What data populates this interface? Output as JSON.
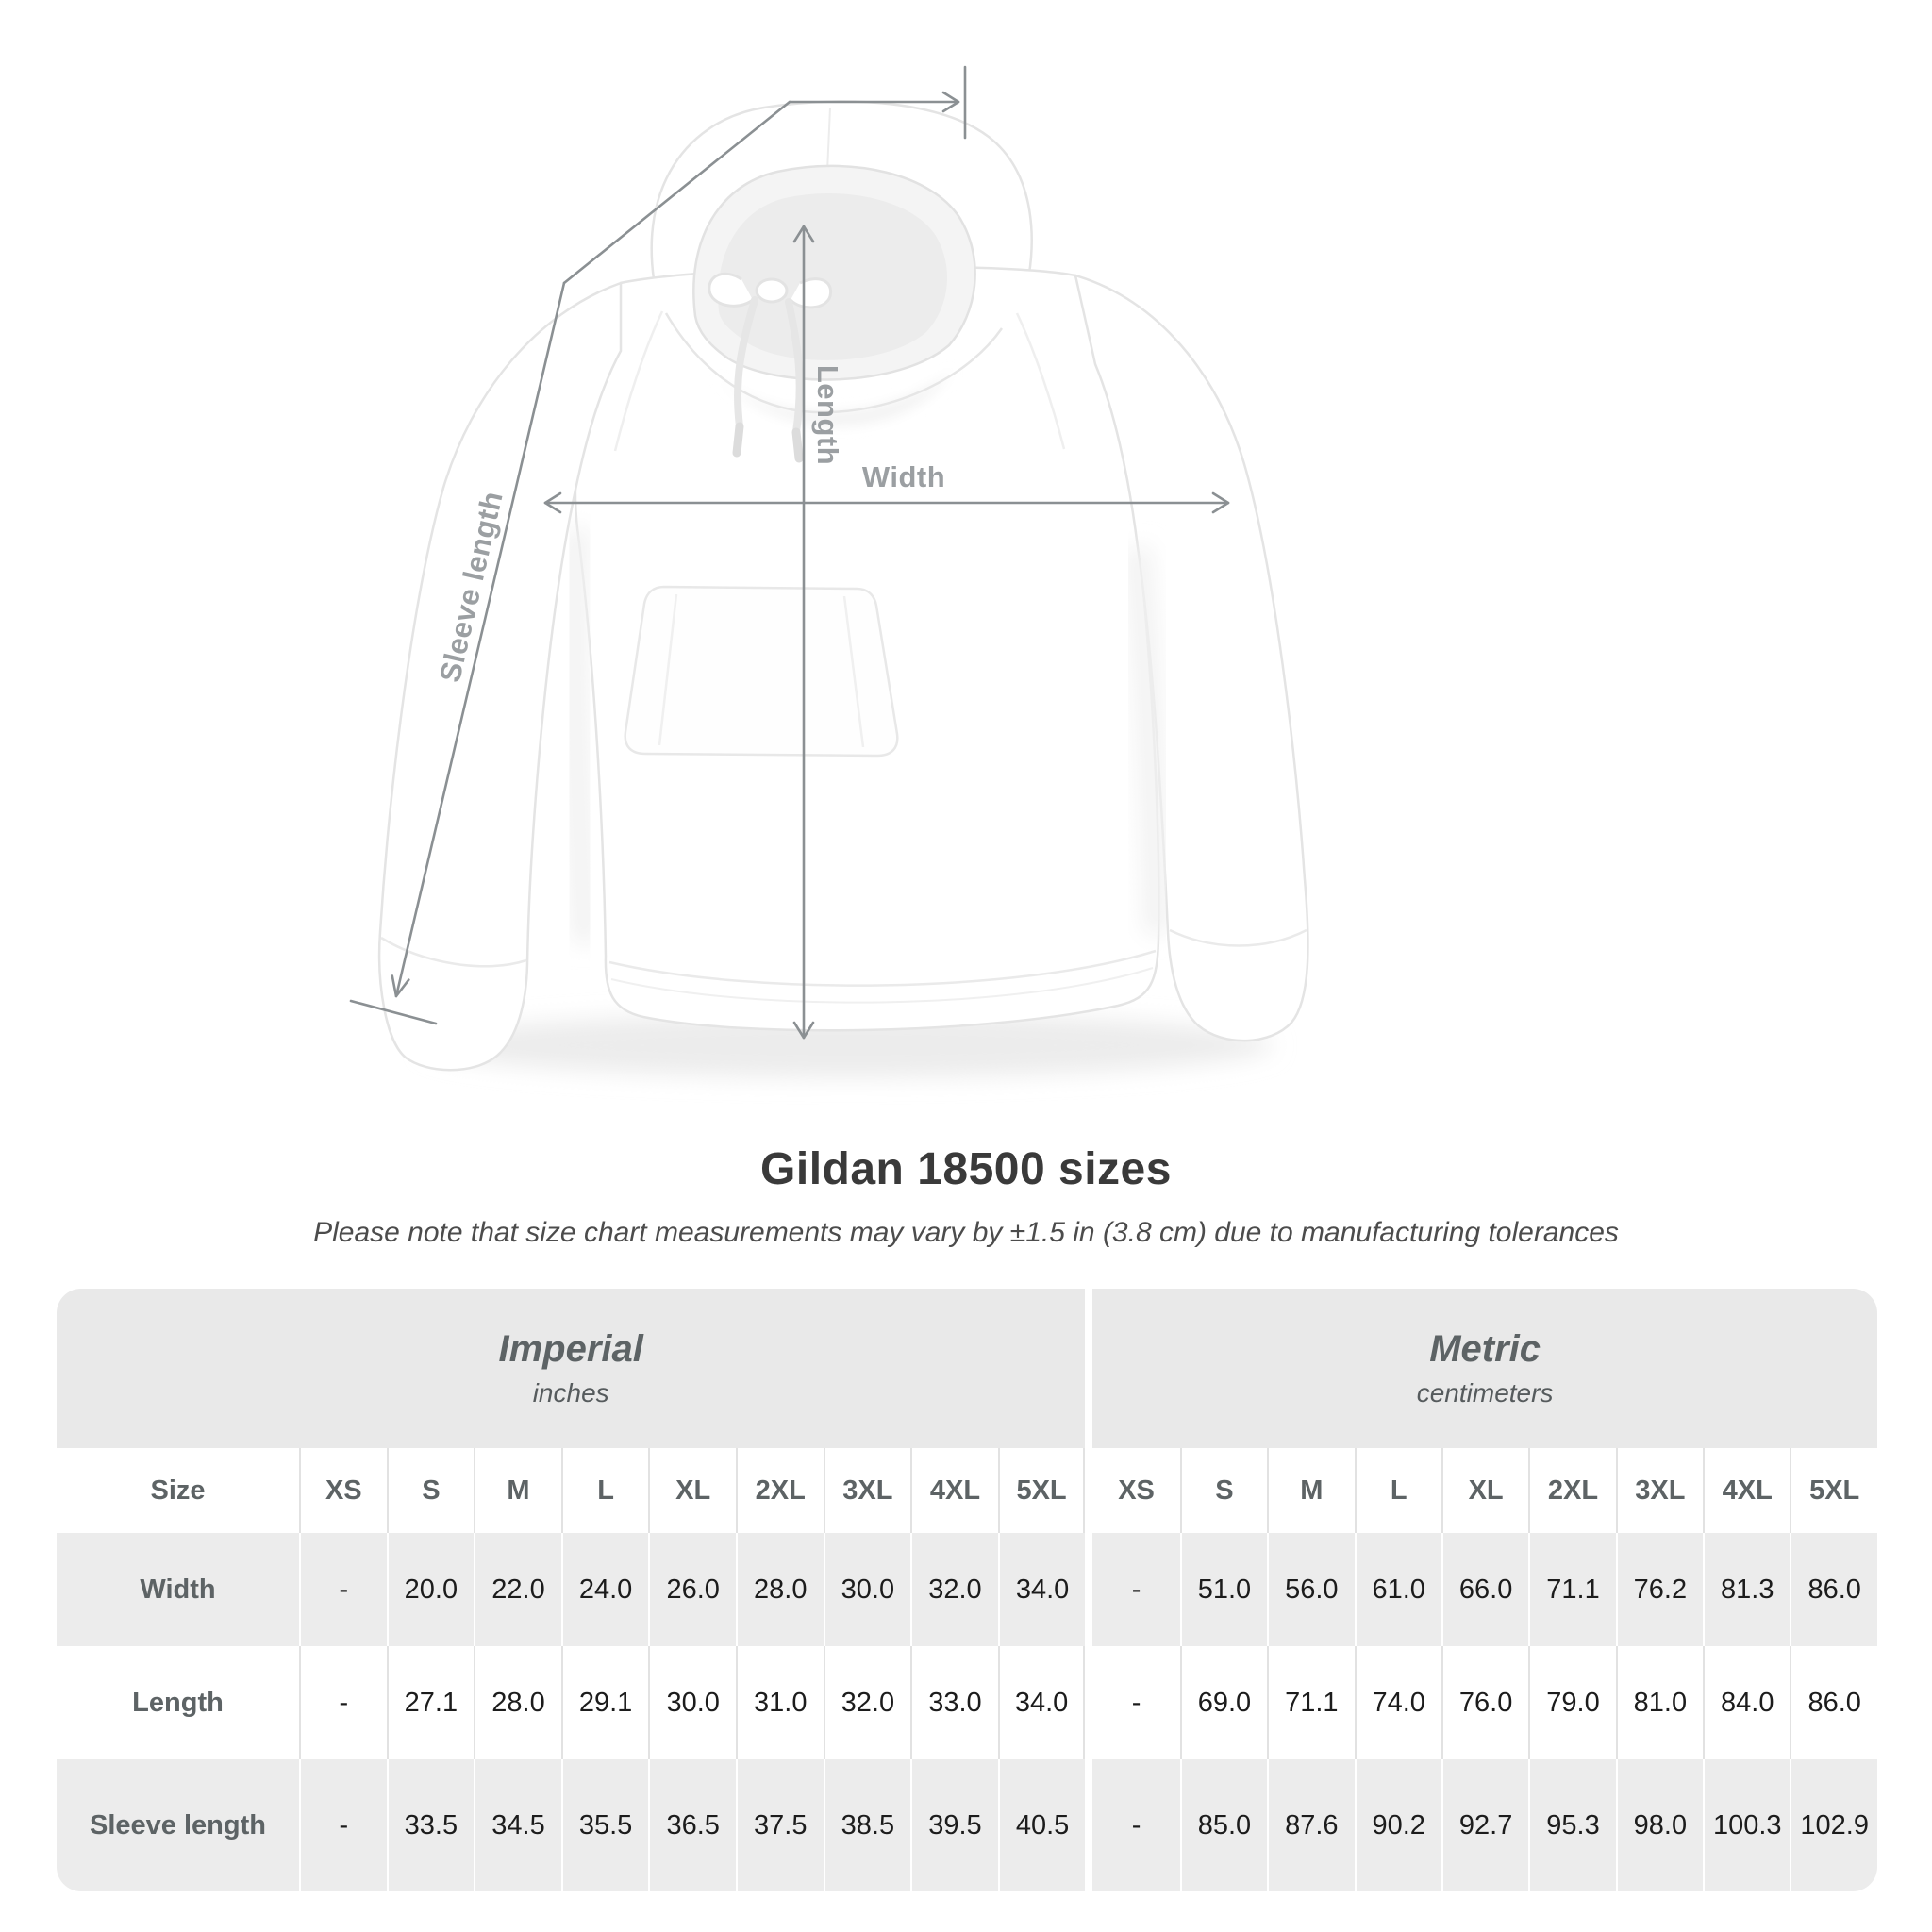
{
  "heading": {
    "title": "Gildan 18500 sizes",
    "subtitle": "Please note that size chart measurements may vary by ±1.5 in (3.8 cm) due to manufacturing tolerances"
  },
  "diagram": {
    "length_label": "Length",
    "width_label": "Width",
    "sleeve_label": "Sleeve length",
    "line_color": "#8b9093",
    "label_color": "#9b9fa2"
  },
  "table": {
    "groups": [
      {
        "title": "Imperial",
        "subtitle": "inches"
      },
      {
        "title": "Metric",
        "subtitle": "centimeters"
      }
    ],
    "size_header": "Size",
    "sizes": [
      "XS",
      "S",
      "M",
      "L",
      "XL",
      "2XL",
      "3XL",
      "4XL",
      "5XL"
    ],
    "rows": [
      {
        "label": "Width",
        "imperial": [
          "-",
          "20.0",
          "22.0",
          "24.0",
          "26.0",
          "28.0",
          "30.0",
          "32.0",
          "34.0"
        ],
        "metric": [
          "-",
          "51.0",
          "56.0",
          "61.0",
          "66.0",
          "71.1",
          "76.2",
          "81.3",
          "86.0"
        ]
      },
      {
        "label": "Length",
        "imperial": [
          "-",
          "27.1",
          "28.0",
          "29.1",
          "30.0",
          "31.0",
          "32.0",
          "33.0",
          "34.0"
        ],
        "metric": [
          "-",
          "69.0",
          "71.1",
          "74.0",
          "76.0",
          "79.0",
          "81.0",
          "84.0",
          "86.0"
        ]
      },
      {
        "label": "Sleeve length",
        "imperial": [
          "-",
          "33.5",
          "34.5",
          "35.5",
          "36.5",
          "37.5",
          "38.5",
          "39.5",
          "40.5"
        ],
        "metric": [
          "-",
          "85.0",
          "87.6",
          "90.2",
          "92.7",
          "95.3",
          "98.0",
          "100.3",
          "102.9"
        ]
      }
    ],
    "colors": {
      "header_bg": "#e9e9e9",
      "row_alt_bg": "#ececec",
      "header_text": "#5d6365",
      "data_text": "#1c1c1c"
    }
  },
  "chart_data": {
    "type": "table",
    "title": "Gildan 18500 sizes",
    "groups": [
      {
        "name": "Imperial",
        "unit": "inches"
      },
      {
        "name": "Metric",
        "unit": "centimeters"
      }
    ],
    "sizes": [
      "XS",
      "S",
      "M",
      "L",
      "XL",
      "2XL",
      "3XL",
      "4XL",
      "5XL"
    ],
    "rows": [
      {
        "label": "Width",
        "imperial": [
          null,
          20.0,
          22.0,
          24.0,
          26.0,
          28.0,
          30.0,
          32.0,
          34.0
        ],
        "metric": [
          null,
          51.0,
          56.0,
          61.0,
          66.0,
          71.1,
          76.2,
          81.3,
          86.0
        ]
      },
      {
        "label": "Length",
        "imperial": [
          null,
          27.1,
          28.0,
          29.1,
          30.0,
          31.0,
          32.0,
          33.0,
          34.0
        ],
        "metric": [
          null,
          69.0,
          71.1,
          74.0,
          76.0,
          79.0,
          81.0,
          84.0,
          86.0
        ]
      },
      {
        "label": "Sleeve length",
        "imperial": [
          null,
          33.5,
          34.5,
          35.5,
          36.5,
          37.5,
          38.5,
          39.5,
          40.5
        ],
        "metric": [
          null,
          85.0,
          87.6,
          90.2,
          92.7,
          95.3,
          98.0,
          100.3,
          102.9
        ]
      }
    ]
  }
}
